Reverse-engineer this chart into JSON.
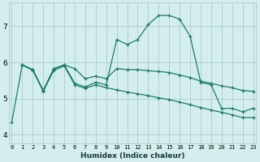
{
  "xlabel": "Humidex (Indice chaleur)",
  "background_color": "#d4eeee",
  "grid_color": "#b0d0d0",
  "line_color": "#1a7a6e",
  "x_ticks": [
    0,
    1,
    2,
    3,
    4,
    5,
    6,
    7,
    8,
    9,
    10,
    11,
    12,
    13,
    14,
    15,
    16,
    17,
    18,
    19,
    20,
    21,
    22,
    23
  ],
  "y_ticks": [
    4,
    5,
    6,
    7
  ],
  "ylim": [
    3.75,
    7.65
  ],
  "xlim": [
    -0.3,
    23.3
  ],
  "series1_x": [
    0,
    1,
    2,
    3,
    4,
    5,
    6,
    7,
    8,
    9,
    10,
    11,
    12,
    13,
    14,
    15,
    16,
    17,
    18,
    19,
    20,
    21,
    22,
    23
  ],
  "series1_y": [
    4.35,
    5.93,
    5.8,
    5.22,
    5.83,
    5.93,
    5.42,
    5.32,
    5.45,
    5.38,
    6.63,
    6.5,
    6.63,
    7.05,
    7.3,
    7.3,
    7.2,
    6.72,
    5.45,
    5.38,
    4.72,
    4.73,
    4.63,
    4.73
  ],
  "series2_x": [
    1,
    2,
    3,
    4,
    5,
    6,
    7,
    8,
    9,
    10,
    11,
    12,
    13,
    14,
    15,
    16,
    17,
    18,
    19,
    20,
    21,
    22,
    23
  ],
  "series2_y": [
    5.93,
    5.8,
    5.22,
    5.82,
    5.93,
    5.83,
    5.55,
    5.62,
    5.55,
    5.83,
    5.8,
    5.8,
    5.77,
    5.75,
    5.72,
    5.65,
    5.58,
    5.48,
    5.42,
    5.35,
    5.3,
    5.22,
    5.2
  ],
  "series3_x": [
    1,
    2,
    3,
    4,
    5,
    6,
    7,
    8,
    9,
    10,
    11,
    12,
    13,
    14,
    15,
    16,
    17,
    18,
    19,
    20,
    21,
    22,
    23
  ],
  "series3_y": [
    5.93,
    5.78,
    5.2,
    5.78,
    5.9,
    5.38,
    5.28,
    5.38,
    5.3,
    5.24,
    5.18,
    5.13,
    5.08,
    5.02,
    4.97,
    4.9,
    4.83,
    4.75,
    4.68,
    4.62,
    4.55,
    4.47,
    4.47
  ]
}
